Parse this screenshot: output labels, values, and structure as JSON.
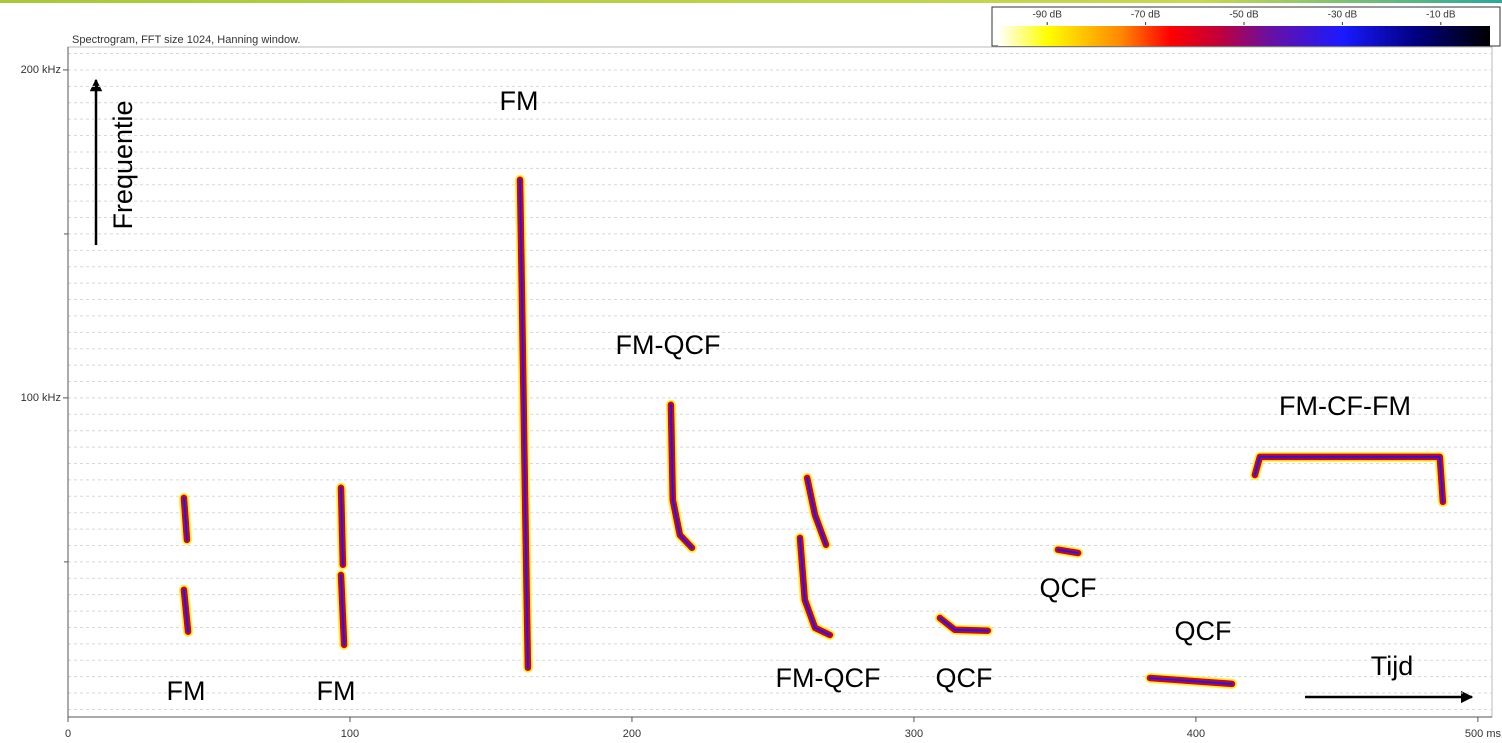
{
  "chart_data": {
    "type": "spectrogram",
    "subtitle": "Spectrogram, FFT size 1024, Hanning window.",
    "xlim": [
      0,
      505
    ],
    "xticks": [
      0,
      100,
      200,
      300,
      400,
      {
        "value": 500,
        "label": "500 ms"
      }
    ],
    "ylim": [
      2.7,
      207
    ],
    "yticks": [
      {
        "value": 100,
        "label": "100 kHz"
      },
      {
        "value": 200,
        "label": "200 kHz"
      }
    ],
    "yminorticks": [
      50,
      150
    ],
    "gridlines": [
      5,
      10,
      15,
      20,
      25,
      30,
      35,
      40,
      45,
      50,
      55,
      60,
      65,
      70,
      75,
      80,
      85,
      90,
      95,
      100,
      105,
      110,
      115,
      120,
      125,
      130,
      135,
      140,
      145,
      150,
      155,
      160,
      165,
      170,
      175,
      180,
      185,
      190,
      195,
      200,
      205
    ],
    "colorbar": {
      "lim": [
        -100,
        0
      ],
      "ticks": [
        {
          "value": -90,
          "label": "-90 dB"
        },
        {
          "value": -70,
          "label": "-70 dB"
        },
        {
          "value": -50,
          "label": "-50 dB"
        },
        {
          "value": -30,
          "label": "-30 dB"
        },
        {
          "value": -10,
          "label": "-10 dB"
        }
      ],
      "colormap": [
        {
          "value": -100,
          "color": "#ffffff"
        },
        {
          "value": -90,
          "color": "#ffff00"
        },
        {
          "value": -75,
          "color": "#ff8800"
        },
        {
          "value": -65,
          "color": "#ff0000"
        },
        {
          "value": -55,
          "color": "#c0003a"
        },
        {
          "value": -45,
          "color": "#6a10a0"
        },
        {
          "value": -30,
          "color": "#1a1aff"
        },
        {
          "value": -15,
          "color": "#000080"
        },
        {
          "value": 0,
          "color": "#000000"
        }
      ]
    },
    "call_colors": [
      "#ffee00",
      "#e00000",
      "#8a0f80",
      "#1a1ae0"
    ],
    "calls": [
      {
        "x": [
          41.1,
          42.2
        ],
        "y": [
          69.5,
          56.7
        ]
      },
      {
        "x": [
          41.1,
          42.6
        ],
        "y": [
          41.5,
          28.7
        ]
      },
      {
        "x": [
          96.8,
          97.5
        ],
        "y": [
          72.6,
          49.1
        ]
      },
      {
        "x": [
          96.8,
          97.9
        ],
        "y": [
          46.0,
          24.7
        ]
      },
      {
        "x": [
          160.3,
          161.0,
          162.1,
          163.1
        ],
        "y": [
          166.5,
          129.9,
          68.9,
          17.7
        ]
      },
      {
        "x": [
          213.8,
          214.5,
          217.0,
          221.3
        ],
        "y": [
          97.9,
          68.9,
          58.2,
          54.3
        ]
      },
      {
        "x": [
          262.1,
          264.9,
          268.8
        ],
        "y": [
          75.6,
          64.3,
          55.2
        ]
      },
      {
        "x": [
          259.6,
          261.3,
          264.9,
          270.2
        ],
        "y": [
          57.3,
          38.4,
          29.9,
          27.7
        ]
      },
      {
        "x": [
          309.2,
          314.5,
          326.2
        ],
        "y": [
          32.9,
          29.3,
          29.0
        ]
      },
      {
        "x": [
          351.1,
          358.2
        ],
        "y": [
          53.7,
          52.7
        ]
      },
      {
        "x": [
          383.7,
          412.8
        ],
        "y": [
          14.6,
          12.8
        ]
      },
      {
        "x": [
          420.9,
          422.7,
          486.5,
          487.6
        ],
        "y": [
          76.5,
          82.0,
          82.0,
          68.3
        ]
      }
    ],
    "annotations": [
      "FM",
      "FM-QCF",
      "FM-CF-FM",
      "FM",
      "FM",
      "FM-QCF",
      "QCF",
      "QCF",
      "QCF",
      "Tijd",
      "Frequentie"
    ]
  }
}
